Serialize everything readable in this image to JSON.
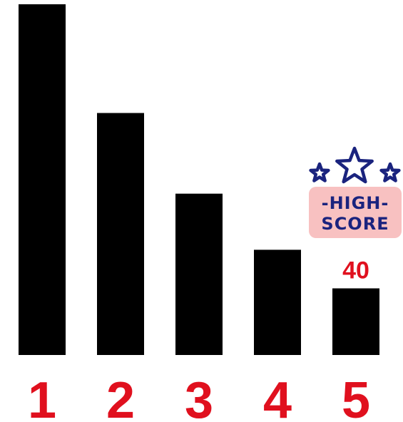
{
  "chart_data": {
    "type": "bar",
    "categories": [
      "1",
      "2",
      "3",
      "4",
      "5"
    ],
    "values": [
      100,
      69,
      46,
      30,
      19
    ],
    "value_labels": [
      "",
      "",
      "",
      "",
      "40"
    ],
    "title": "",
    "xlabel": "",
    "ylabel": "",
    "ylim": [
      0,
      100
    ],
    "grid": false,
    "legend": "none",
    "bar_color": "#000000",
    "label_color": "#e0101e"
  },
  "badge": {
    "line1": "-HIGH-",
    "line2": "SCORE",
    "icon": "three-stars-icon",
    "text_color": "#1a237e",
    "fill_color": "#f8c1c1"
  }
}
